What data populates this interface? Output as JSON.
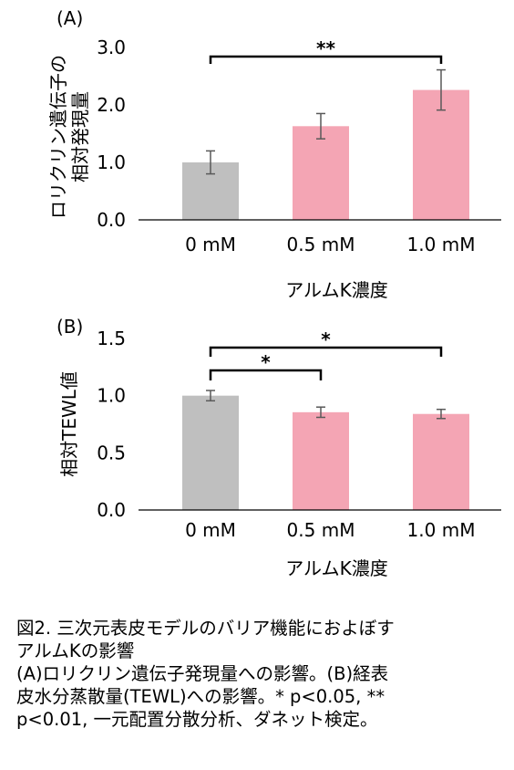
{
  "panel_a_label": "(A)",
  "panel_b_label": "(B)",
  "caption": {
    "line1": "図2. 三次元表皮モデルのバリア機能におよぼす",
    "line2": "アルムKの影響",
    "line3": "(A)ロリクリン遺伝子発現量への影響。(B)経表",
    "line4": "皮水分蒸散量(TEWL)への影響。* p<0.05, **",
    "line5": "p<0.01, 一元配置分散分析、ダネット検定。"
  },
  "colors": {
    "control": "#bfbfbf",
    "treated": "#f4a5b4",
    "axis": "#000000"
  },
  "chart_data": [
    {
      "type": "bar",
      "categories": [
        "0 mM",
        "0.5 mM",
        "1.0 mM"
      ],
      "values": [
        1.0,
        1.63,
        2.26
      ],
      "errors": [
        0.2,
        0.22,
        0.35
      ],
      "ylabel": "ロリクリン遺伝子の\n相対発現量",
      "xlabel": "アルムK濃度",
      "ylim": [
        0,
        3
      ],
      "yticks": [
        "0.0",
        "1.0",
        "2.0",
        "3.0"
      ],
      "significance": [
        {
          "from": 0,
          "to": 2,
          "label": "**"
        }
      ]
    },
    {
      "type": "bar",
      "categories": [
        "0 mM",
        "0.5 mM",
        "1.0 mM"
      ],
      "values": [
        1.0,
        0.855,
        0.84
      ],
      "errors": [
        0.045,
        0.045,
        0.04
      ],
      "ylabel": "相対TEWL値",
      "xlabel": "アルムK濃度",
      "ylim": [
        0,
        1.5
      ],
      "yticks": [
        "0.0",
        "0.5",
        "1.0",
        "1.5"
      ],
      "significance": [
        {
          "from": 0,
          "to": 1,
          "label": "*"
        },
        {
          "from": 0,
          "to": 2,
          "label": "*"
        }
      ]
    }
  ]
}
